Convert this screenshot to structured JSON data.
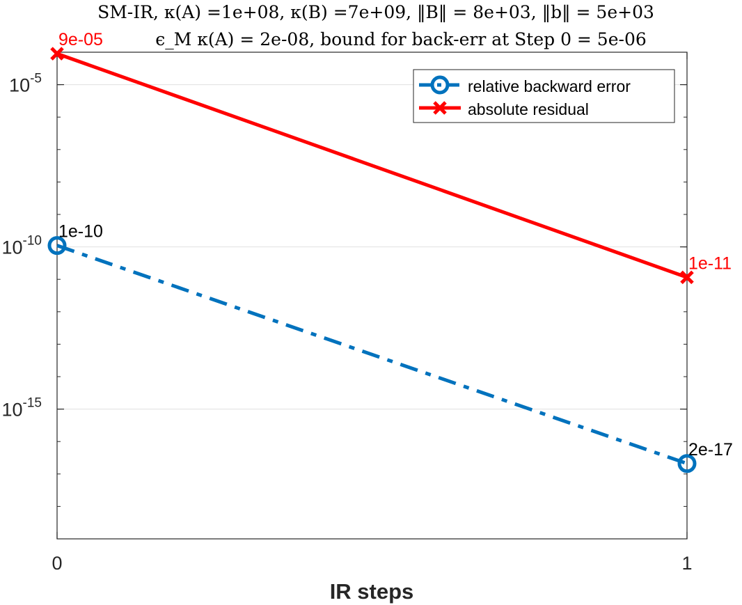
{
  "chart_data": {
    "type": "line",
    "title_line1": "SM-IR, κ(A) =1e+08, κ(B) =7e+09, ‖B‖ = 8e+03, ‖b‖ = 5e+03",
    "title_line2": "ϵ_M κ(A) = 2e-08, bound for back-err at Step 0 = 5e-06",
    "xlabel": "IR steps",
    "ylabel": "",
    "x": [
      0,
      1
    ],
    "xticks": [
      0,
      1
    ],
    "xlim": [
      0,
      1
    ],
    "ylim": [
      1e-19,
      0.0001
    ],
    "yscale": "log",
    "yticks": [
      {
        "value": 1e-05,
        "base": "10",
        "exp": "-5"
      },
      {
        "value": 1e-10,
        "base": "10",
        "exp": "-10"
      },
      {
        "value": 1e-15,
        "base": "10",
        "exp": "-15"
      }
    ],
    "grid": "horizontal-major",
    "legend_position": "top-right",
    "series": [
      {
        "name": "relative backward error",
        "values": [
          1.1e-10,
          2.1e-17
        ],
        "labels": [
          "1e-10",
          "2e-17"
        ],
        "color": "#0072BD",
        "line_style": "dash-dot",
        "marker": "circle"
      },
      {
        "name": "absolute residual",
        "values": [
          9e-05,
          1.15e-11
        ],
        "labels": [
          "9e-05",
          "1e-11"
        ],
        "color": "#FF0000",
        "line_style": "solid",
        "marker": "x"
      }
    ]
  }
}
